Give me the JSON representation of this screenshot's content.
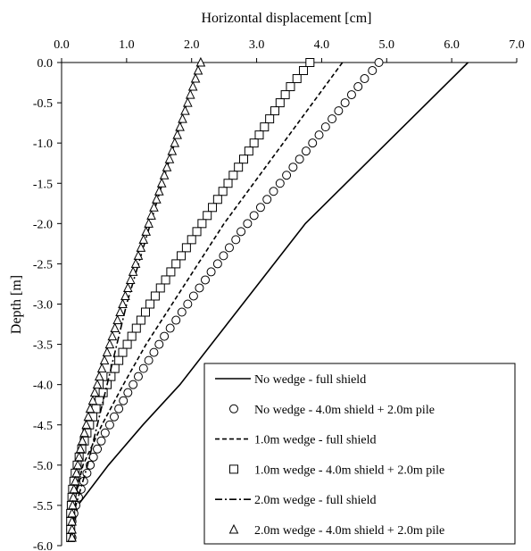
{
  "chart_data": {
    "type": "line",
    "title": "",
    "xlabel": "Horizontal displacement [cm]",
    "ylabel": "Depth [m]",
    "xlim": [
      0,
      7
    ],
    "ylim": [
      -6,
      0
    ],
    "x_ticks": [
      "0.0",
      "1.0",
      "2.0",
      "3.0",
      "4.0",
      "5.0",
      "6.0",
      "7.0"
    ],
    "y_ticks": [
      "0.0",
      "-0.5",
      "-1.0",
      "-1.5",
      "-2.0",
      "-2.5",
      "-3.0",
      "-3.5",
      "-4.0",
      "-4.5",
      "-5.0",
      "-5.5",
      "-6.0"
    ],
    "x_axis_position": "top",
    "grid": false,
    "legend_position": "bottom-right",
    "series": [
      {
        "name": "No wedge - full shield",
        "style": "solid-line",
        "points": [
          [
            6.25,
            0.0
          ],
          [
            3.75,
            -2.0
          ],
          [
            1.82,
            -4.0
          ],
          [
            1.25,
            -4.5
          ],
          [
            0.72,
            -5.0
          ],
          [
            0.25,
            -5.5
          ],
          [
            0.15,
            -5.95
          ]
        ]
      },
      {
        "name": "No wedge - 4.0m shield + 2.0m pile",
        "style": "circle-marker",
        "points": [
          [
            4.88,
            0.0
          ],
          [
            4.78,
            -0.1
          ],
          [
            4.66,
            -0.2
          ],
          [
            4.56,
            -0.3
          ],
          [
            4.46,
            -0.4
          ],
          [
            4.36,
            -0.5
          ],
          [
            4.26,
            -0.6
          ],
          [
            4.16,
            -0.7
          ],
          [
            4.06,
            -0.8
          ],
          [
            3.96,
            -0.9
          ],
          [
            3.86,
            -1.0
          ],
          [
            3.76,
            -1.1
          ],
          [
            3.66,
            -1.2
          ],
          [
            3.56,
            -1.3
          ],
          [
            3.46,
            -1.4
          ],
          [
            3.36,
            -1.5
          ],
          [
            3.26,
            -1.6
          ],
          [
            3.16,
            -1.7
          ],
          [
            3.06,
            -1.8
          ],
          [
            2.96,
            -1.9
          ],
          [
            2.86,
            -2.0
          ],
          [
            2.76,
            -2.1
          ],
          [
            2.68,
            -2.2
          ],
          [
            2.58,
            -2.3
          ],
          [
            2.49,
            -2.4
          ],
          [
            2.4,
            -2.5
          ],
          [
            2.3,
            -2.6
          ],
          [
            2.21,
            -2.7
          ],
          [
            2.12,
            -2.8
          ],
          [
            2.03,
            -2.9
          ],
          [
            1.94,
            -3.0
          ],
          [
            1.85,
            -3.1
          ],
          [
            1.76,
            -3.2
          ],
          [
            1.67,
            -3.3
          ],
          [
            1.58,
            -3.4
          ],
          [
            1.5,
            -3.5
          ],
          [
            1.42,
            -3.6
          ],
          [
            1.34,
            -3.7
          ],
          [
            1.26,
            -3.8
          ],
          [
            1.18,
            -3.9
          ],
          [
            1.1,
            -4.0
          ],
          [
            1.02,
            -4.1
          ],
          [
            0.95,
            -4.2
          ],
          [
            0.88,
            -4.3
          ],
          [
            0.81,
            -4.4
          ],
          [
            0.74,
            -4.5
          ],
          [
            0.67,
            -4.6
          ],
          [
            0.61,
            -4.7
          ],
          [
            0.55,
            -4.8
          ],
          [
            0.49,
            -4.9
          ],
          [
            0.44,
            -5.0
          ],
          [
            0.39,
            -5.1
          ],
          [
            0.34,
            -5.2
          ],
          [
            0.3,
            -5.3
          ],
          [
            0.26,
            -5.4
          ],
          [
            0.22,
            -5.5
          ],
          [
            0.19,
            -5.6
          ],
          [
            0.16,
            -5.7
          ],
          [
            0.14,
            -5.8
          ],
          [
            0.16,
            -5.9
          ]
        ]
      },
      {
        "name": "1.0m wedge - full shield",
        "style": "dashed-line",
        "points": [
          [
            4.32,
            0.0
          ],
          [
            2.5,
            -2.0
          ],
          [
            1.3,
            -3.5
          ],
          [
            0.95,
            -4.0
          ],
          [
            0.62,
            -4.5
          ],
          [
            0.33,
            -5.0
          ],
          [
            0.18,
            -5.5
          ],
          [
            0.12,
            -5.95
          ]
        ]
      },
      {
        "name": "1.0m wedge - 4.0m shield + 2.0m pile",
        "style": "square-marker",
        "points": [
          [
            3.82,
            0.0
          ],
          [
            3.72,
            -0.1
          ],
          [
            3.62,
            -0.2
          ],
          [
            3.52,
            -0.3
          ],
          [
            3.44,
            -0.4
          ],
          [
            3.36,
            -0.5
          ],
          [
            3.28,
            -0.6
          ],
          [
            3.2,
            -0.7
          ],
          [
            3.12,
            -0.8
          ],
          [
            3.04,
            -0.9
          ],
          [
            2.96,
            -1.0
          ],
          [
            2.88,
            -1.1
          ],
          [
            2.8,
            -1.2
          ],
          [
            2.72,
            -1.3
          ],
          [
            2.64,
            -1.4
          ],
          [
            2.56,
            -1.5
          ],
          [
            2.48,
            -1.6
          ],
          [
            2.4,
            -1.7
          ],
          [
            2.32,
            -1.8
          ],
          [
            2.24,
            -1.9
          ],
          [
            2.16,
            -2.0
          ],
          [
            2.08,
            -2.1
          ],
          [
            2.0,
            -2.2
          ],
          [
            1.92,
            -2.3
          ],
          [
            1.84,
            -2.4
          ],
          [
            1.76,
            -2.5
          ],
          [
            1.68,
            -2.6
          ],
          [
            1.6,
            -2.7
          ],
          [
            1.52,
            -2.8
          ],
          [
            1.44,
            -2.9
          ],
          [
            1.36,
            -3.0
          ],
          [
            1.29,
            -3.1
          ],
          [
            1.22,
            -3.2
          ],
          [
            1.15,
            -3.3
          ],
          [
            1.08,
            -3.4
          ],
          [
            1.01,
            -3.5
          ],
          [
            0.94,
            -3.6
          ],
          [
            0.88,
            -3.7
          ],
          [
            0.82,
            -3.8
          ],
          [
            0.76,
            -3.9
          ],
          [
            0.7,
            -4.0
          ],
          [
            0.64,
            -4.1
          ],
          [
            0.58,
            -4.2
          ],
          [
            0.53,
            -4.3
          ],
          [
            0.48,
            -4.4
          ],
          [
            0.43,
            -4.5
          ],
          [
            0.39,
            -4.6
          ],
          [
            0.35,
            -4.7
          ],
          [
            0.31,
            -4.8
          ],
          [
            0.27,
            -4.9
          ],
          [
            0.24,
            -5.0
          ],
          [
            0.21,
            -5.1
          ],
          [
            0.19,
            -5.2
          ],
          [
            0.17,
            -5.3
          ],
          [
            0.16,
            -5.4
          ],
          [
            0.15,
            -5.5
          ],
          [
            0.14,
            -5.6
          ],
          [
            0.14,
            -5.7
          ],
          [
            0.14,
            -5.8
          ],
          [
            0.14,
            -5.9
          ]
        ]
      },
      {
        "name": "2.0m wedge - full shield",
        "style": "dash-dot-line",
        "points": [
          [
            2.12,
            0.0
          ],
          [
            1.55,
            -1.5
          ],
          [
            1.0,
            -3.0
          ],
          [
            0.7,
            -4.0
          ],
          [
            0.4,
            -5.0
          ],
          [
            0.22,
            -5.5
          ],
          [
            0.12,
            -5.95
          ]
        ]
      },
      {
        "name": "2.0m wedge - 4.0m shield + 2.0m pile",
        "style": "triangle-marker",
        "points": [
          [
            2.14,
            0.0
          ],
          [
            2.1,
            -0.1
          ],
          [
            2.06,
            -0.2
          ],
          [
            2.02,
            -0.3
          ],
          [
            1.98,
            -0.4
          ],
          [
            1.94,
            -0.5
          ],
          [
            1.9,
            -0.6
          ],
          [
            1.86,
            -0.7
          ],
          [
            1.82,
            -0.8
          ],
          [
            1.78,
            -0.9
          ],
          [
            1.74,
            -1.0
          ],
          [
            1.7,
            -1.1
          ],
          [
            1.66,
            -1.2
          ],
          [
            1.62,
            -1.3
          ],
          [
            1.58,
            -1.4
          ],
          [
            1.54,
            -1.5
          ],
          [
            1.5,
            -1.6
          ],
          [
            1.46,
            -1.7
          ],
          [
            1.42,
            -1.8
          ],
          [
            1.38,
            -1.9
          ],
          [
            1.34,
            -2.0
          ],
          [
            1.3,
            -2.1
          ],
          [
            1.26,
            -2.2
          ],
          [
            1.22,
            -2.3
          ],
          [
            1.18,
            -2.4
          ],
          [
            1.14,
            -2.5
          ],
          [
            1.1,
            -2.6
          ],
          [
            1.06,
            -2.7
          ],
          [
            1.02,
            -2.8
          ],
          [
            0.98,
            -2.9
          ],
          [
            0.94,
            -3.0
          ],
          [
            0.9,
            -3.1
          ],
          [
            0.86,
            -3.2
          ],
          [
            0.82,
            -3.3
          ],
          [
            0.78,
            -3.4
          ],
          [
            0.74,
            -3.5
          ],
          [
            0.7,
            -3.6
          ],
          [
            0.66,
            -3.7
          ],
          [
            0.62,
            -3.8
          ],
          [
            0.58,
            -3.9
          ],
          [
            0.55,
            -4.0
          ],
          [
            0.51,
            -4.1
          ],
          [
            0.48,
            -4.2
          ],
          [
            0.44,
            -4.3
          ],
          [
            0.41,
            -4.4
          ],
          [
            0.38,
            -4.5
          ],
          [
            0.35,
            -4.6
          ],
          [
            0.32,
            -4.7
          ],
          [
            0.29,
            -4.8
          ],
          [
            0.27,
            -4.9
          ],
          [
            0.25,
            -5.0
          ],
          [
            0.23,
            -5.1
          ],
          [
            0.21,
            -5.2
          ],
          [
            0.19,
            -5.3
          ],
          [
            0.18,
            -5.4
          ],
          [
            0.17,
            -5.5
          ],
          [
            0.16,
            -5.6
          ],
          [
            0.16,
            -5.7
          ],
          [
            0.16,
            -5.8
          ],
          [
            0.16,
            -5.9
          ]
        ]
      }
    ]
  }
}
